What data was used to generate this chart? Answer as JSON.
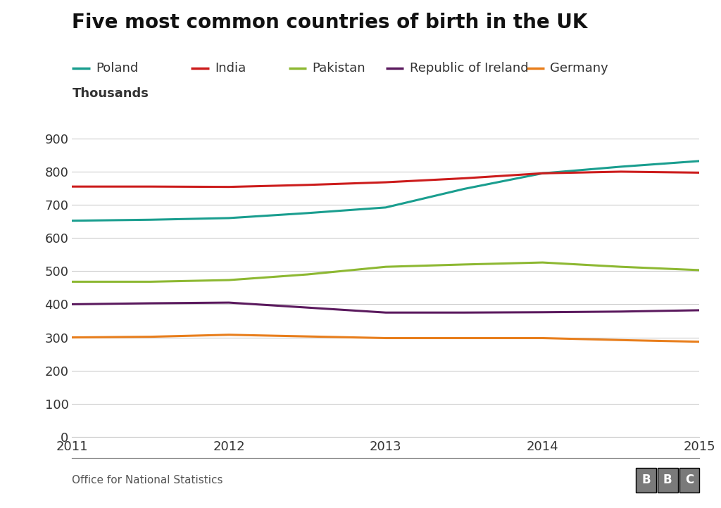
{
  "title": "Five most common countries of birth in the UK",
  "ylabel": "Thousands",
  "source": "Office for National Statistics",
  "x": [
    2011,
    2011.5,
    2012,
    2012.5,
    2013,
    2013.5,
    2014,
    2014.5,
    2015
  ],
  "series": {
    "Poland": {
      "color": "#1a9e8f",
      "values": [
        652,
        655,
        660,
        675,
        692,
        748,
        795,
        815,
        832
      ]
    },
    "India": {
      "color": "#cc1c1c",
      "values": [
        755,
        755,
        754,
        760,
        768,
        780,
        795,
        800,
        797
      ]
    },
    "Pakistan": {
      "color": "#8db832",
      "values": [
        468,
        468,
        473,
        490,
        513,
        520,
        526,
        513,
        503
      ]
    },
    "Republic of Ireland": {
      "color": "#5b1a5e",
      "values": [
        400,
        403,
        405,
        390,
        375,
        375,
        376,
        378,
        382
      ]
    },
    "Germany": {
      "color": "#e87e1c",
      "values": [
        300,
        302,
        308,
        303,
        298,
        298,
        298,
        292,
        287
      ]
    }
  },
  "ylim": [
    0,
    950
  ],
  "yticks": [
    0,
    100,
    200,
    300,
    400,
    500,
    600,
    700,
    800,
    900
  ],
  "xlim": [
    2011,
    2015
  ],
  "xticks": [
    2011,
    2012,
    2013,
    2014,
    2015
  ],
  "background_color": "#ffffff",
  "grid_color": "#cccccc",
  "title_fontsize": 20,
  "label_fontsize": 13,
  "tick_fontsize": 13,
  "legend_fontsize": 13,
  "line_width": 2.2,
  "footer_source": "Office for National Statistics",
  "bbc_box_color": "#7a7a7a",
  "bbc_text_color": "#ffffff"
}
